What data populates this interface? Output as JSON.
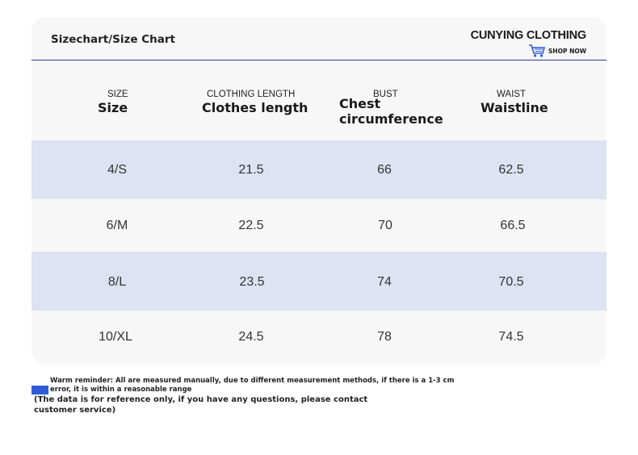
{
  "header": {
    "title": "Sizechart/Size Chart",
    "brand": "CUNYING CLOTHING",
    "shop_now": "SHOP NOW",
    "icon": "shopping-cart-icon"
  },
  "columns": [
    {
      "en": "SIZE",
      "zh": "Size"
    },
    {
      "en": "CLOTHING LENGTH",
      "zh": "Clothes length"
    },
    {
      "en": "BUST",
      "zh": "Chest circumference"
    },
    {
      "en": "WAIST",
      "zh": "Waistline"
    }
  ],
  "rows": [
    [
      "4/S",
      "21.5",
      "66",
      "62.5"
    ],
    [
      "6/M",
      "22.5",
      "70",
      "66.5"
    ],
    [
      "8/L",
      "23.5",
      "74",
      "70.5"
    ],
    [
      "10/XL",
      "24.5",
      "78",
      "74.5"
    ]
  ],
  "note": {
    "line1": "Warm reminder: All are measured manually, due to different measurement methods, if there is a 1-3 cm error, it is within a reasonable range",
    "line2": "(The data is for reference only, if you have any questions, please contact customer service)"
  },
  "colors": {
    "band": "#dde3f2",
    "rule": "#2d3f8f",
    "mark": "#2f5bd8"
  }
}
